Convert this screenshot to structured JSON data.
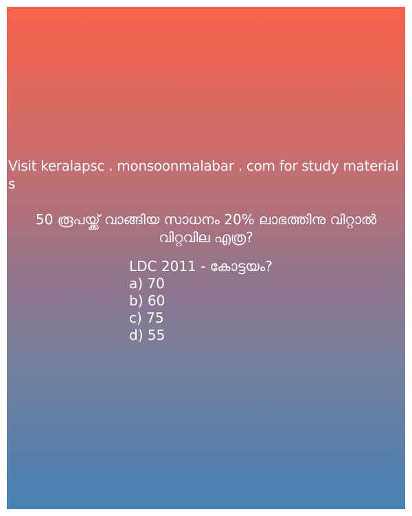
{
  "promo_text": "Visit keralapsc . monsoonmalabar . com for study materials",
  "question": {
    "line1": "50 രൂപയ്ക്ക് വാങ്ങിയ സാധനം 20% ലാഭത്തിനു വിറ്റാൽ",
    "line2": "വിറ്റവില എത്ര?"
  },
  "exam": "LDC 2011 - കോട്ടയം?",
  "options": [
    {
      "label": "a) 70"
    },
    {
      "label": "b) 60"
    },
    {
      "label": "c) 75"
    },
    {
      "label": "d) 55"
    }
  ],
  "colors": {
    "gradient_top": "#fb624a",
    "gradient_bottom": "#4881b1",
    "text": "#ffffff"
  }
}
